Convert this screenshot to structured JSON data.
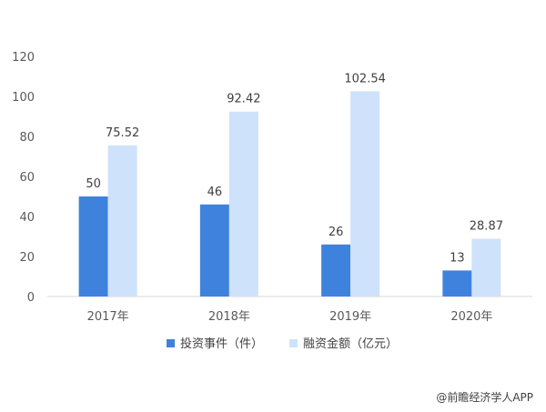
{
  "chart_data": {
    "type": "bar",
    "categories": [
      "2017年",
      "2018年",
      "2019年",
      "2020年"
    ],
    "series": [
      {
        "name": "投资事件（件）",
        "values": [
          50,
          46,
          26,
          13
        ],
        "color": "#3f82de"
      },
      {
        "name": "融资金额（亿元）",
        "values": [
          75.52,
          92.42,
          102.54,
          28.87
        ],
        "color": "#cfe2fb"
      }
    ],
    "ylim": [
      0,
      120
    ],
    "yticks": [
      0,
      20,
      40,
      60,
      80,
      100,
      120
    ],
    "data_labels": [
      [
        "50",
        "46",
        "26",
        "13"
      ],
      [
        "75.52",
        "92.42",
        "102.54",
        "28.87"
      ]
    ],
    "grid": false,
    "legend_position": "bottom"
  },
  "source": "@前瞻经济学人APP"
}
